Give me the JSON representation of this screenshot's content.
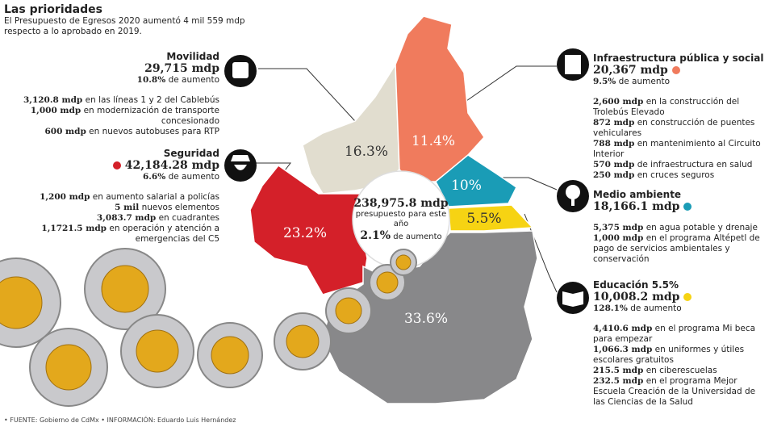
{
  "header": {
    "title": "Las prioridades",
    "subtitle": "El Presupuesto de Egresos 2020 aumentó 4 mil 559 mdp respecto a lo aprobado en 2019."
  },
  "center": {
    "amount": "238,975.8 mdp",
    "label": "presupuesto para este año",
    "growth": "2.1%",
    "growth_label": "de aumento"
  },
  "map": {
    "sectors": [
      {
        "label": "16.3%"
      },
      {
        "label": "11.4%"
      },
      {
        "label": "23.2%"
      },
      {
        "label": "10%"
      },
      {
        "label": "5.5%"
      },
      {
        "label": "33.6%"
      }
    ]
  },
  "sections": [
    {
      "title": "Movilidad",
      "amount": "29,715 mdp",
      "growth": "10.8%",
      "growth_label": "de aumento",
      "items": [
        {
          "bold": "3,120.8 mdp",
          "text": "en las líneas 1 y 2 del Cablebús"
        },
        {
          "bold": "1,000 mdp",
          "text": "en modernización de transporte concesionado"
        },
        {
          "bold": "600 mdp",
          "text": "en nuevos autobuses para RTP"
        }
      ]
    },
    {
      "title": "Seguridad",
      "amount": "42,184.28 mdp",
      "growth": "6.6%",
      "growth_label": "de aumento",
      "items": [
        {
          "bold": "1,200 mdp",
          "text": "en aumento salarial a policías"
        },
        {
          "bold": "5 mil",
          "text": "nuevos elementos"
        },
        {
          "bold": "3,083.7 mdp",
          "text": "en cuadrantes"
        },
        {
          "bold": "1,1721.5 mdp",
          "text": "en operación y atención a emergencias del C5"
        }
      ]
    },
    {
      "title": "Infraestructura pública y social",
      "amount": "20,367 mdp",
      "growth": "9.5%",
      "growth_label": "de aumento",
      "items": [
        {
          "bold": "2,600 mdp",
          "text": "en la construcción del Trolebús Elevado"
        },
        {
          "bold": "872 mdp",
          "text": "en construcción de puentes vehiculares"
        },
        {
          "bold": "788 mdp",
          "text": "en mantenimiento al Circuito Interior"
        },
        {
          "bold": "570 mdp",
          "text": "de infraestructura en salud"
        },
        {
          "bold": "250 mdp",
          "text": "en cruces seguros"
        }
      ]
    },
    {
      "title": "Medio ambiente",
      "amount": "18,166.1 mdp",
      "items": [
        {
          "bold": "5,375 mdp",
          "text": "en agua potable y drenaje"
        },
        {
          "bold": "1,000 mdp",
          "text": "en el programa Altépetl de pago de servicios ambientales y conservación"
        }
      ]
    },
    {
      "title": "Educación 5.5%",
      "amount": "10,008.2 mdp",
      "growth": "128.1%",
      "growth_label": "de aumento",
      "items": [
        {
          "bold": "4,410.6 mdp",
          "text": "en el programa Mi beca para empezar"
        },
        {
          "bold": "1,066.3 mdp",
          "text": "en uniformes y útiles escolares gratuitos"
        },
        {
          "bold": "215.5 mdp",
          "text": "en ciberescuelas"
        },
        {
          "bold": "232.5 mdp",
          "text": "en el programa Mejor Escuela Creación de la Universidad de las Ciencias de la Salud"
        }
      ]
    }
  ],
  "footer": "• FUENTE: Gobierno de CdMx • INFORMACIÓN: Eduardo Luis Hernández"
}
